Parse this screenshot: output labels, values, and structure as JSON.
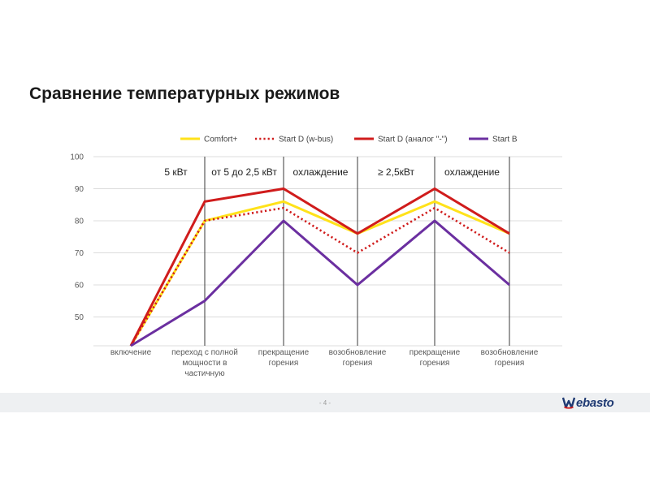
{
  "slide": {
    "title": "Сравнение температурных режимов",
    "page_number": "- 4 -",
    "logo_text": "ebasto"
  },
  "colors": {
    "comfort": "#ffe21a",
    "start_d_wbus": "#d01c1c",
    "start_d": "#d01c1c",
    "start_b": "#6b2fa0",
    "grid": "#dcdcdc",
    "divider": "#3a3a3a",
    "logo": "#1f3a73"
  },
  "chart_data": {
    "type": "line",
    "categories": [
      [
        "включение"
      ],
      [
        "переход с полной",
        "мощности в",
        "частичную"
      ],
      [
        "прекращение",
        "горения"
      ],
      [
        "возобновление",
        "горения"
      ],
      [
        "прекращение",
        "горения"
      ],
      [
        "возобновление",
        "горения"
      ]
    ],
    "y_ticks": [
      "50",
      "60",
      "70",
      "80",
      "90",
      "100"
    ],
    "ylim": [
      41,
      100
    ],
    "grid": true,
    "legend_position": "top",
    "phases": [
      "5 кВт",
      "от 5 до 2,5 кВт",
      "охлаждение",
      "≥ 2,5кВт",
      "охлаждение"
    ],
    "series": [
      {
        "name": "Comfort+",
        "style": "solid",
        "color_key": "comfort",
        "values": [
          41,
          80,
          86,
          76,
          86,
          76
        ]
      },
      {
        "name": "Start D (w-bus)",
        "style": "dotted",
        "color_key": "start_d_wbus",
        "values": [
          41,
          80,
          84,
          70,
          84,
          70
        ]
      },
      {
        "name": "Start D (аналог \"-\")",
        "style": "solid",
        "color_key": "start_d",
        "values": [
          41,
          86,
          90,
          76,
          90,
          76
        ]
      },
      {
        "name": "Start B",
        "style": "solid",
        "color_key": "start_b",
        "values": [
          41,
          55,
          80,
          60,
          80,
          60
        ]
      }
    ]
  }
}
